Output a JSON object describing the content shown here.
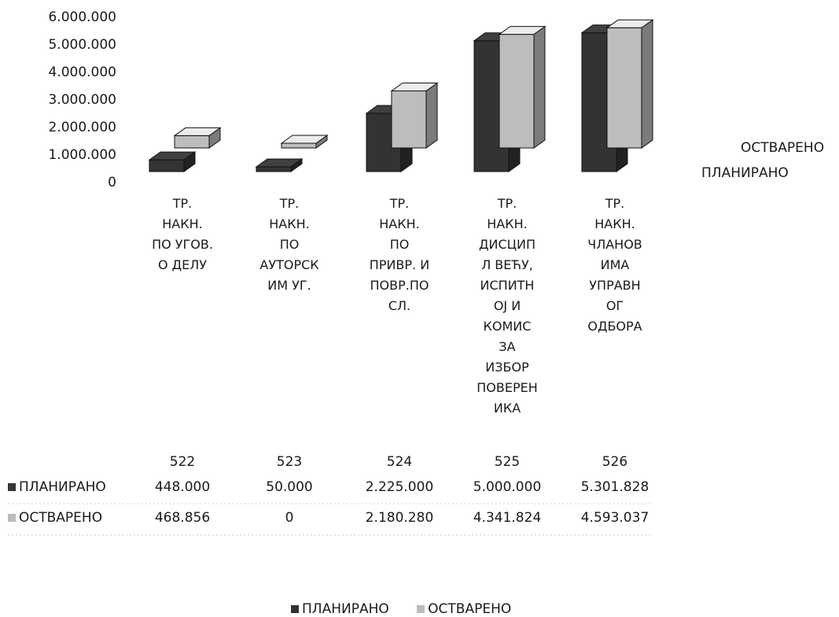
{
  "chart_data": {
    "type": "bar",
    "subtype": "3d-clustered-column",
    "categories": [
      "ТР.\nНАКН.\nПО УГОВ.\nО ДЕЛУ",
      "ТР.\nНАКН.\nПО\nАУТОРСК\nИМ УГ.",
      "ТР.\nНАКН.\nПО\nПРИВР. И\nПОВР.ПО\nСЛ.",
      "ТР.\nНАКН.\nДИСЦИП\nЛ ВЕЋУ,\nИСПИТН\nОЈ И\nКОМИС\nЗА\nИЗБОР\nПОВЕРЕН\nИКА",
      "ТР.\nНАКН.\nЧЛАНОВ\nИМА\nУПРАВН\nОГ\nОДБОРА"
    ],
    "codes": [
      "522",
      "523",
      "524",
      "525",
      "526"
    ],
    "series": [
      {
        "name": "ПЛАНИРАНО",
        "values": [
          448000,
          50000,
          2225000,
          5000000,
          5301828
        ],
        "display": [
          "448.000",
          "50.000",
          "2.225.000",
          "5.000.000",
          "5.301.828"
        ],
        "color": "#333333"
      },
      {
        "name": "ОСТВАРЕНО",
        "values": [
          468856,
          0,
          2180280,
          4341824,
          4593037
        ],
        "display": [
          "468.856",
          "0",
          "2.180.280",
          "4.341.824",
          "4.593.037"
        ],
        "color": "#bdbdbd"
      }
    ],
    "y_ticks": [
      "0",
      "1.000.000",
      "2.000.000",
      "3.000.000",
      "4.000.000",
      "5.000.000",
      "6.000.000"
    ],
    "ylim": [
      0,
      6000000
    ],
    "grid": false,
    "legend": "bottom",
    "side_labels": [
      "ОСТВАРЕНО",
      "ПЛАНИРАНО"
    ]
  }
}
